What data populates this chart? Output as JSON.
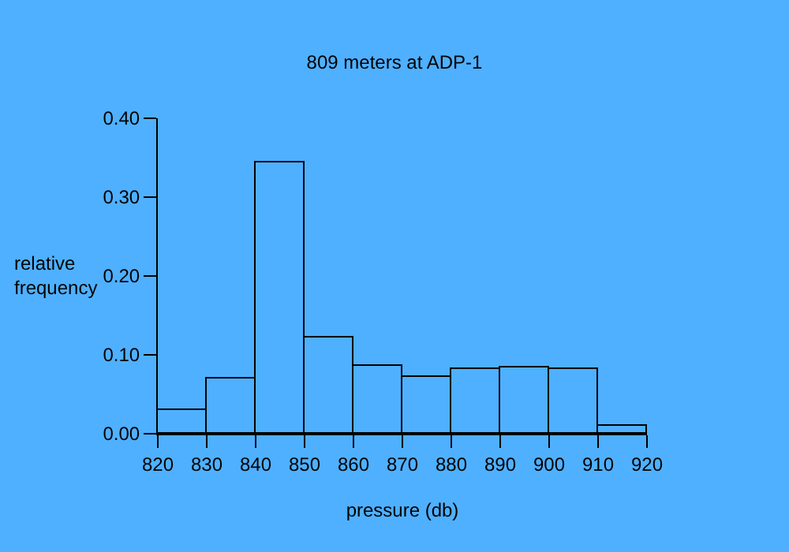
{
  "chart_data": {
    "type": "histogram",
    "title": "809 meters at ADP-1",
    "xlabel": "pressure (db)",
    "ylabel": "relative frequency",
    "bins": [
      820,
      830,
      840,
      850,
      860,
      870,
      880,
      890,
      900,
      910,
      920
    ],
    "values": [
      0.031,
      0.071,
      0.345,
      0.123,
      0.087,
      0.073,
      0.082,
      0.085,
      0.083,
      0.011
    ],
    "color": "#000000",
    "xlim": [
      820,
      920
    ],
    "xticks": [
      820,
      830,
      840,
      850,
      860,
      870,
      880,
      890,
      900,
      910,
      920
    ],
    "ylim": [
      0,
      0.4
    ],
    "yticks": [
      {
        "value": 0,
        "label": "0.00"
      },
      {
        "value": 0.1,
        "label": "0.10"
      },
      {
        "value": 0.2,
        "label": "0.20"
      },
      {
        "value": 0.3,
        "label": "0.30"
      },
      {
        "value": 0.4,
        "label": "0.40"
      }
    ],
    "grid": false
  }
}
